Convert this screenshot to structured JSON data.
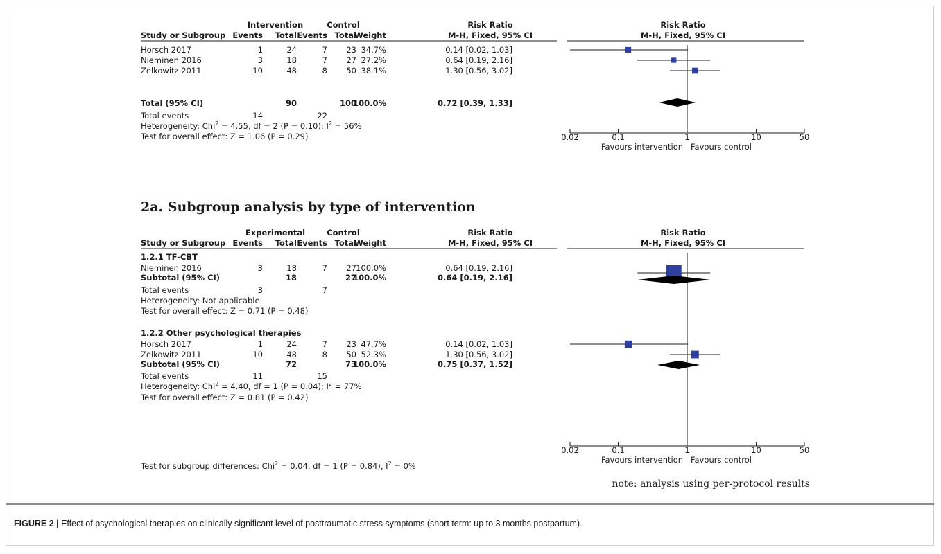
{
  "chart_data": [
    {
      "type": "forest",
      "header": {
        "col_study": "Study or Subgroup",
        "group1": "Intervention",
        "group2": "Control",
        "events": "Events",
        "total": "Total",
        "weight": "Weight",
        "rr_title": "Risk Ratio",
        "rr_method": "M-H, Fixed, 95% CI",
        "plot_title": "Risk Ratio",
        "plot_method": "M-H, Fixed, 95% CI"
      },
      "studies": [
        {
          "name": "Horsch 2017",
          "e1": "1",
          "n1": "24",
          "e2": "7",
          "n2": "23",
          "weight": "34.7%",
          "ci_text": "0.14 [0.02, 1.03]",
          "rr": 0.14,
          "lo": 0.02,
          "hi": 1.03,
          "w": 34.7
        },
        {
          "name": "Nieminen 2016",
          "e1": "3",
          "n1": "18",
          "e2": "7",
          "n2": "27",
          "weight": "27.2%",
          "ci_text": "0.64 [0.19, 2.16]",
          "rr": 0.64,
          "lo": 0.19,
          "hi": 2.16,
          "w": 27.2
        },
        {
          "name": "Zelkowitz 2011",
          "e1": "10",
          "n1": "48",
          "e2": "8",
          "n2": "50",
          "weight": "38.1%",
          "ci_text": "1.30 [0.56, 3.02]",
          "rr": 1.3,
          "lo": 0.56,
          "hi": 3.02,
          "w": 38.1
        }
      ],
      "total": {
        "label": "Total (95% CI)",
        "n1": "90",
        "n2": "100",
        "weight": "100.0%",
        "ci_text": "0.72 [0.39, 1.33]",
        "rr": 0.72,
        "lo": 0.39,
        "hi": 1.33
      },
      "total_events": {
        "label": "Total events",
        "e1": "14",
        "e2": "22"
      },
      "heterogeneity": {
        "prefix": "Heterogeneity: Chi",
        "mid": " = 4.55, df = 2 (P = 0.10); I",
        "suffix": " = 56%",
        "sup": "2"
      },
      "overall_effect": "Test for overall effect: Z = 1.06 (P = 0.29)",
      "x_scale": "log",
      "xlim": [
        0.02,
        50
      ],
      "ticks": [
        "0.02",
        "0.1",
        "1",
        "10",
        "50"
      ],
      "favours_left": "Favours intervention",
      "favours_right": "Favours control"
    },
    {
      "type": "forest",
      "section_title": "2a. Subgroup analysis by type of intervention",
      "header": {
        "col_study": "Study or Subgroup",
        "group1": "Experimental",
        "group2": "Control",
        "events": "Events",
        "total": "Total",
        "weight": "Weight",
        "rr_title": "Risk Ratio",
        "rr_method": "M-H, Fixed, 95% CI",
        "plot_title": "Risk Ratio",
        "plot_method": "M-H, Fixed, 95% CI"
      },
      "subgroups": [
        {
          "label": "1.2.1 TF-CBT",
          "studies": [
            {
              "name": "Nieminen 2016",
              "e1": "3",
              "n1": "18",
              "e2": "7",
              "n2": "27",
              "weight": "100.0%",
              "ci_text": "0.64 [0.19, 2.16]",
              "rr": 0.64,
              "lo": 0.19,
              "hi": 2.16,
              "w": 100.0
            }
          ],
          "subtotal": {
            "label": "Subtotal (95% CI)",
            "n1": "18",
            "n2": "27",
            "weight": "100.0%",
            "ci_text": "0.64 [0.19, 2.16]",
            "rr": 0.64,
            "lo": 0.19,
            "hi": 2.16
          },
          "total_events": {
            "label": "Total events",
            "e1": "3",
            "e2": "7"
          },
          "heterogeneity_text": "Heterogeneity: Not applicable",
          "overall_effect": "Test for overall effect: Z = 0.71 (P = 0.48)"
        },
        {
          "label": "1.2.2 Other psychological therapies",
          "studies": [
            {
              "name": "Horsch 2017",
              "e1": "1",
              "n1": "24",
              "e2": "7",
              "n2": "23",
              "weight": "47.7%",
              "ci_text": "0.14 [0.02, 1.03]",
              "rr": 0.14,
              "lo": 0.02,
              "hi": 1.03,
              "w": 47.7
            },
            {
              "name": "Zelkowitz 2011",
              "e1": "10",
              "n1": "48",
              "e2": "8",
              "n2": "50",
              "weight": "52.3%",
              "ci_text": "1.30 [0.56, 3.02]",
              "rr": 1.3,
              "lo": 0.56,
              "hi": 3.02,
              "w": 52.3
            }
          ],
          "subtotal": {
            "label": "Subtotal (95% CI)",
            "n1": "72",
            "n2": "73",
            "weight": "100.0%",
            "ci_text": "0.75 [0.37, 1.52]",
            "rr": 0.75,
            "lo": 0.37,
            "hi": 1.52
          },
          "total_events": {
            "label": "Total events",
            "e1": "11",
            "e2": "15"
          },
          "heterogeneity": {
            "prefix": "Heterogeneity: Chi",
            "mid": " = 4.40, df = 1 (P = 0.04); I",
            "suffix": " = 77%",
            "sup": "2"
          },
          "overall_effect": "Test for overall effect: Z = 0.81 (P = 0.42)"
        }
      ],
      "subgroup_differences": {
        "prefix": "Test for subgroup differences: Chi",
        "mid": " = 0.04, df = 1 (P = 0.84), I",
        "suffix": " = 0%",
        "sup": "2"
      },
      "x_scale": "log",
      "xlim": [
        0.02,
        50
      ],
      "ticks": [
        "0.02",
        "0.1",
        "1",
        "10",
        "50"
      ],
      "favours_left": "Favours intervention",
      "favours_right": "Favours control",
      "note": "note: analysis using per-protocol results"
    }
  ],
  "caption": {
    "label": "FIGURE 2 |",
    "text": "Effect of psychological therapies on clinically significant level of posttraumatic stress symptoms (short term: up to 3 months postpartum)."
  },
  "colors": {
    "square": "#2f3f9e",
    "diamond": "#000000",
    "text": "#1b1b1b",
    "frame": "#cfcfcf"
  }
}
